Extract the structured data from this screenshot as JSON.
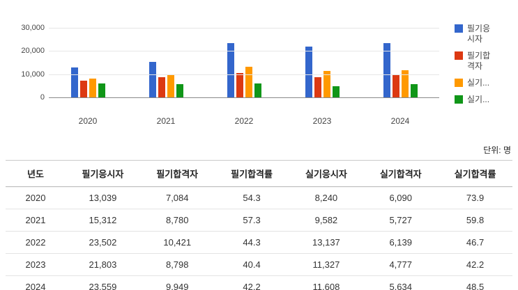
{
  "unit_label": "단위: 명",
  "chart_data": {
    "type": "bar",
    "title": "",
    "xlabel": "",
    "ylabel": "",
    "ylim": [
      0,
      30000
    ],
    "grid": true,
    "legend_position": "right",
    "categories": [
      "2020",
      "2021",
      "2022",
      "2023",
      "2024"
    ],
    "y_ticks": [
      {
        "label": "30,000",
        "value": 30000
      },
      {
        "label": "20,000",
        "value": 20000
      },
      {
        "label": "10,000",
        "value": 10000
      },
      {
        "label": "0",
        "value": 0
      }
    ],
    "series": [
      {
        "name": "필기응시자",
        "color": "#3366cc",
        "values": [
          13039,
          15312,
          23502,
          21803,
          23559
        ]
      },
      {
        "name": "필기합격자",
        "color": "#dc3912",
        "values": [
          7084,
          8780,
          10421,
          8798,
          9949
        ]
      },
      {
        "name": "실기응시자",
        "color": "#ff9900",
        "values": [
          8240,
          9582,
          13137,
          11327,
          11608
        ]
      },
      {
        "name": "실기합격자",
        "color": "#109618",
        "values": [
          6090,
          5727,
          6139,
          4777,
          5634
        ]
      }
    ],
    "legend_labels": [
      "필기응시자",
      "필기합격자",
      "실기...",
      "실기..."
    ]
  },
  "table": {
    "headers": [
      "년도",
      "필기응시자",
      "필기합격자",
      "필기합격률",
      "실기응시자",
      "실기합격자",
      "실기합격률"
    ],
    "rows": [
      [
        "2020",
        "13,039",
        "7,084",
        "54.3",
        "8,240",
        "6,090",
        "73.9"
      ],
      [
        "2021",
        "15,312",
        "8,780",
        "57.3",
        "9,582",
        "5,727",
        "59.8"
      ],
      [
        "2022",
        "23,502",
        "10,421",
        "44.3",
        "13,137",
        "6,139",
        "46.7"
      ],
      [
        "2023",
        "21,803",
        "8,798",
        "40.4",
        "11,327",
        "4,777",
        "42.2"
      ],
      [
        "2024",
        "23,559",
        "9,949",
        "42.2",
        "11,608",
        "5,634",
        "48.5"
      ]
    ]
  }
}
